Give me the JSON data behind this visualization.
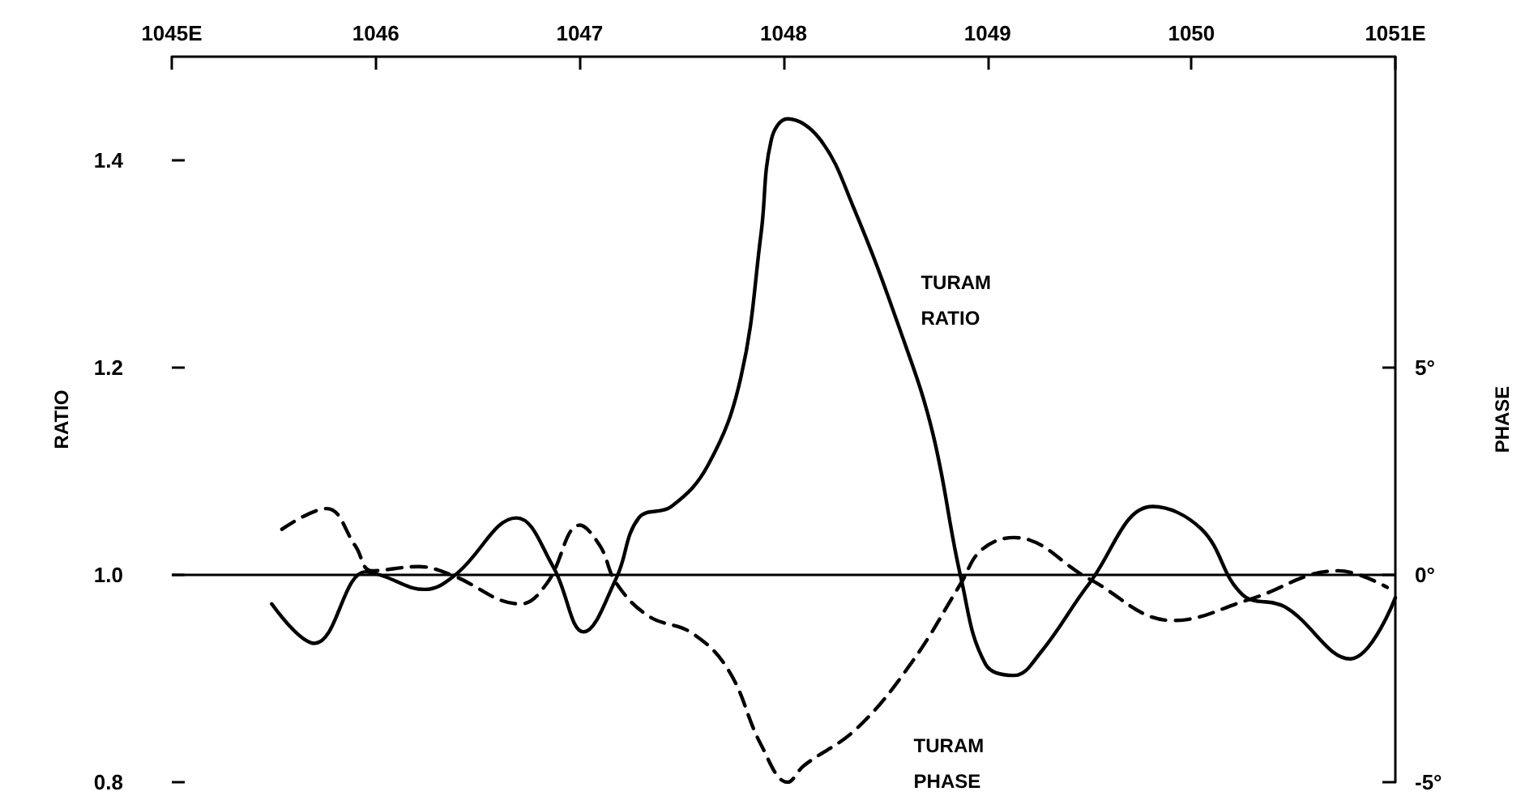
{
  "chart_data": {
    "type": "line",
    "ylabel": "RATIO",
    "y2label": "PHASE",
    "xlim": [
      1045,
      1051
    ],
    "xticks": [
      {
        "value": 1045,
        "label": "1045E"
      },
      1046,
      1047,
      1048,
      1049,
      1050,
      {
        "value": 1051,
        "label": "1051E"
      }
    ],
    "ylim": [
      0.8,
      1.5
    ],
    "yticks": [
      {
        "value": 0.8,
        "label": "0.8"
      },
      {
        "value": 1.0,
        "label": "1.0"
      },
      {
        "value": 1.2,
        "label": "1.2"
      },
      {
        "value": 1.4,
        "label": "1.4"
      }
    ],
    "y2lim": [
      -5,
      12.5
    ],
    "y2ticks": [
      {
        "value": -5,
        "label": "-5°"
      },
      {
        "value": 0,
        "label": "0°"
      },
      {
        "value": 5,
        "label": "5°"
      }
    ],
    "grid": false,
    "legend": false,
    "marker": "none",
    "ref_lines": [
      {
        "axis": "y",
        "value": 1.0,
        "color": "#000000"
      }
    ],
    "series": [
      {
        "name": "TURAM RATIO",
        "color": "#000000",
        "line_style": "solid",
        "x": [
          1045.49,
          1045.7,
          1045.95,
          1046.02,
          1046.24,
          1046.39,
          1046.69,
          1046.87,
          1047.02,
          1047.18,
          1047.29,
          1047.45,
          1047.63,
          1047.79,
          1047.89,
          1047.94,
          1048.02,
          1048.18,
          1048.34,
          1048.57,
          1048.73,
          1048.87,
          1048.99,
          1049.13,
          1049.26,
          1049.5,
          1049.81,
          1050.05,
          1050.25,
          1050.46,
          1050.78,
          1051.0
        ],
        "values": [
          0.972,
          0.934,
          1.003,
          1.0,
          0.986,
          1.0,
          1.055,
          1.008,
          0.945,
          0.997,
          1.055,
          1.066,
          1.106,
          1.19,
          1.33,
          1.42,
          1.44,
          1.42,
          1.356,
          1.237,
          1.138,
          0.997,
          0.914,
          0.903,
          0.925,
          0.992,
          1.066,
          1.044,
          0.981,
          0.969,
          0.919,
          0.978
        ]
      },
      {
        "name": "TURAM PHASE",
        "color": "#000000",
        "line_style": "dashed",
        "axis": "y2",
        "x": [
          1045.54,
          1045.76,
          1045.9,
          1045.98,
          1046.21,
          1046.37,
          1046.71,
          1046.84,
          1047.0,
          1047.1,
          1047.18,
          1047.34,
          1047.55,
          1047.73,
          1047.89,
          1048.02,
          1048.1,
          1048.36,
          1048.63,
          1048.87,
          1048.97,
          1049.13,
          1049.5,
          1049.91,
          1050.28,
          1050.72,
          1050.96
        ],
        "values": [
          1.1,
          1.6,
          0.7,
          0.1,
          0.2,
          0,
          -0.7,
          -0.2,
          1.2,
          0.7,
          -0.2,
          -1.0,
          -1.4,
          -2.3,
          -4.1,
          -5.0,
          -4.6,
          -3.7,
          -2.1,
          -0.2,
          0.6,
          0.9,
          -0.1,
          -1.1,
          -0.6,
          0.1,
          -0.3
        ]
      }
    ]
  }
}
